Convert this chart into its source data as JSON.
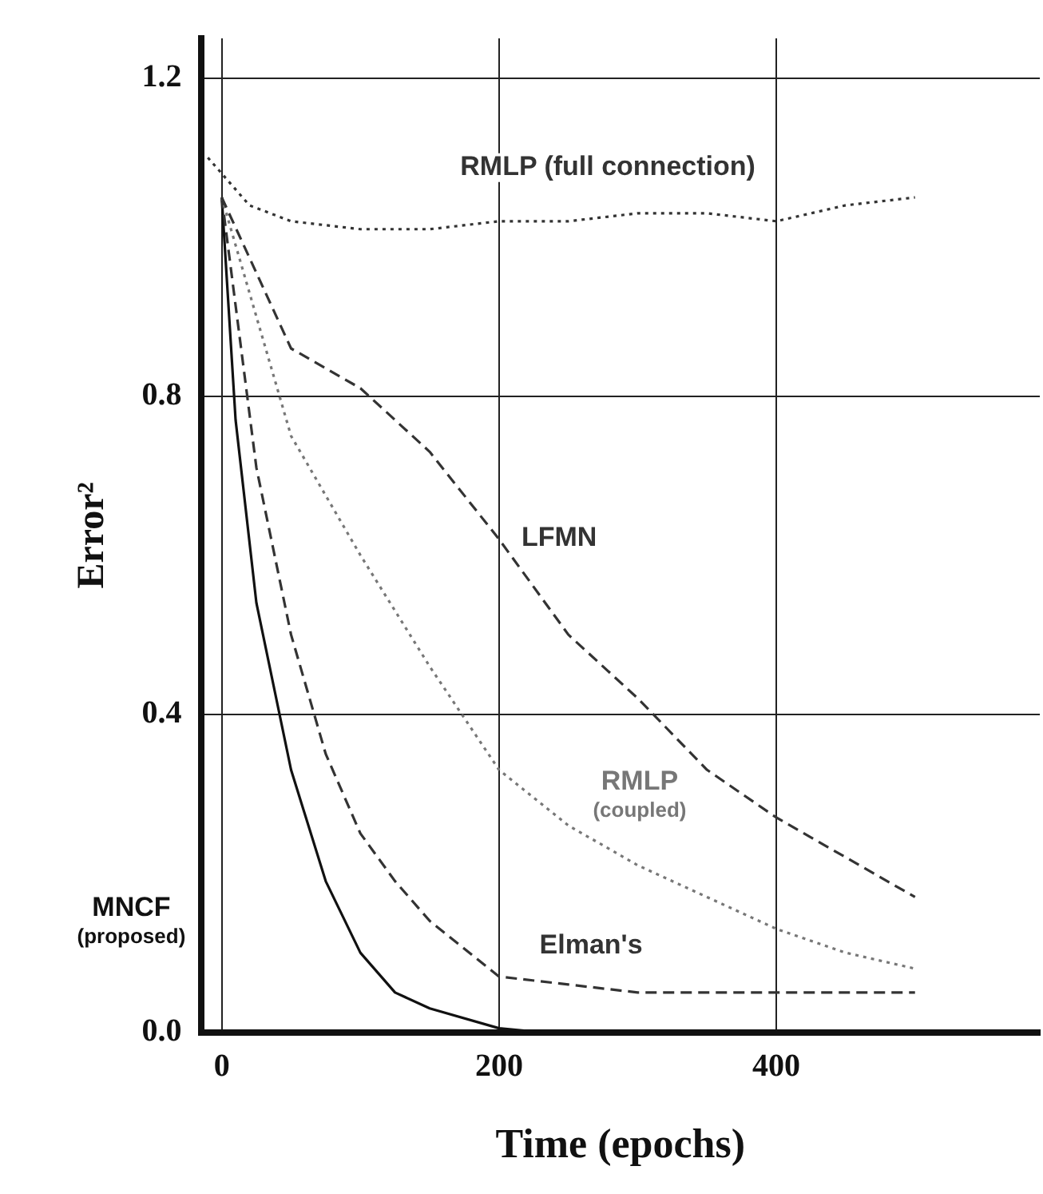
{
  "chart_data": {
    "type": "line",
    "xlabel": "Time (epochs)",
    "ylabel": "Error²",
    "xlim": [
      -15,
      590
    ],
    "ylim": [
      0,
      1.25
    ],
    "xticks": [
      0,
      200,
      400
    ],
    "yticks": [
      {
        "value": 0,
        "label": "0.0"
      },
      {
        "value": 0.4,
        "label": "0.4"
      },
      {
        "value": 0.8,
        "label": "0.8"
      },
      {
        "value": 1.2,
        "label": "1.2"
      }
    ],
    "grid": true,
    "series": [
      {
        "name": "RMLP (full connection)",
        "color": "#333333",
        "line_style": "dotted",
        "x": [
          -10,
          0,
          20,
          50,
          100,
          150,
          200,
          250,
          300,
          350,
          400,
          450,
          500
        ],
        "values": [
          1.1,
          1.08,
          1.04,
          1.02,
          1.01,
          1.01,
          1.02,
          1.02,
          1.03,
          1.03,
          1.02,
          1.04,
          1.05
        ]
      },
      {
        "name": "LFMN",
        "color": "#333333",
        "line_style": "dashed",
        "x": [
          0,
          50,
          100,
          150,
          200,
          250,
          300,
          350,
          400,
          450,
          500
        ],
        "values": [
          1.05,
          0.86,
          0.81,
          0.73,
          0.62,
          0.5,
          0.42,
          0.33,
          0.27,
          0.22,
          0.17
        ]
      },
      {
        "name": "RMLP (coupled)",
        "color": "#777777",
        "line_style": "dotted",
        "x": [
          0,
          50,
          100,
          150,
          200,
          250,
          300,
          350,
          400,
          450,
          500
        ],
        "values": [
          1.05,
          0.75,
          0.6,
          0.46,
          0.33,
          0.26,
          0.21,
          0.17,
          0.13,
          0.1,
          0.08
        ]
      },
      {
        "name": "Elman's",
        "color": "#333333",
        "line_style": "dashed",
        "x": [
          0,
          25,
          50,
          75,
          100,
          125,
          150,
          200,
          250,
          300,
          400,
          500
        ],
        "values": [
          1.05,
          0.71,
          0.5,
          0.35,
          0.25,
          0.19,
          0.14,
          0.07,
          0.06,
          0.05,
          0.05,
          0.05
        ]
      },
      {
        "name": "MNCF (proposed)",
        "color": "#111111",
        "line_style": "solid",
        "x": [
          0,
          10,
          25,
          50,
          75,
          100,
          125,
          150,
          200,
          230
        ],
        "values": [
          1.05,
          0.77,
          0.54,
          0.33,
          0.19,
          0.1,
          0.05,
          0.03,
          0.005,
          0
        ]
      }
    ]
  }
}
